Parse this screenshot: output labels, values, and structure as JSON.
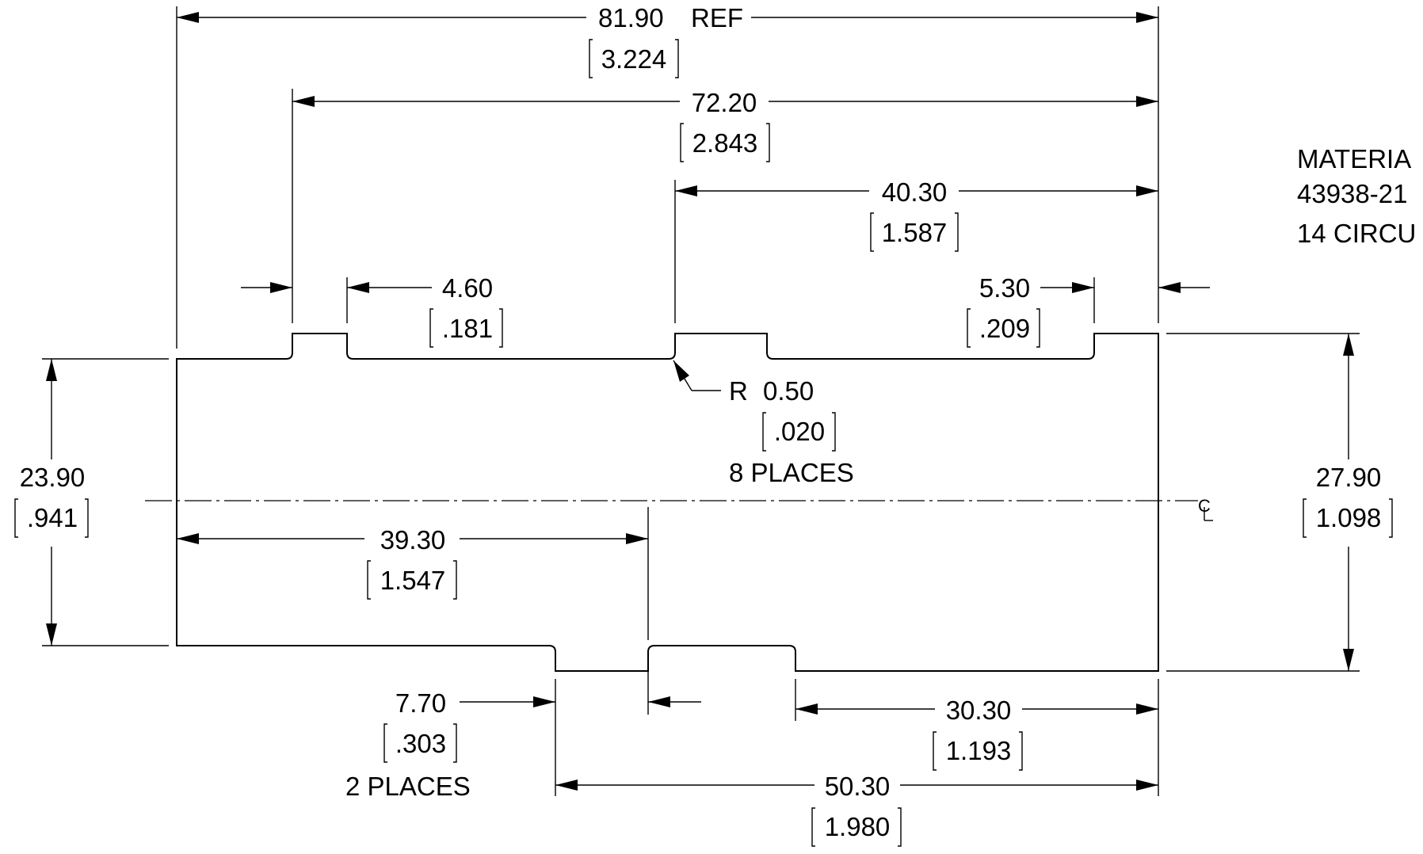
{
  "drawing": {
    "dimensions": {
      "overall": {
        "mm": "81.90",
        "suffix": "REF",
        "inch": "3.224"
      },
      "d72": {
        "mm": "72.20",
        "inch": "2.843"
      },
      "d40": {
        "mm": "40.30",
        "inch": "1.587"
      },
      "d460": {
        "mm": "4.60",
        "inch": ".181"
      },
      "d530": {
        "mm": "5.30",
        "inch": ".209"
      },
      "radius": {
        "prefix": "R",
        "mm": "0.50",
        "inch": ".020",
        "note": "8 PLACES"
      },
      "height_left": {
        "mm": "23.90",
        "inch": ".941"
      },
      "height_right": {
        "mm": "27.90",
        "inch": "1.098"
      },
      "d39": {
        "mm": "39.30",
        "inch": "1.547"
      },
      "d770": {
        "mm": "7.70",
        "inch": ".303",
        "note": "2 PLACES"
      },
      "d30": {
        "mm": "30.30",
        "inch": "1.193"
      },
      "d50": {
        "mm": "50.30",
        "inch": "1.980"
      }
    },
    "notes": [
      "MATERIA",
      "43938-21",
      "14 CIRCU"
    ],
    "centerline_symbol": "CL"
  }
}
